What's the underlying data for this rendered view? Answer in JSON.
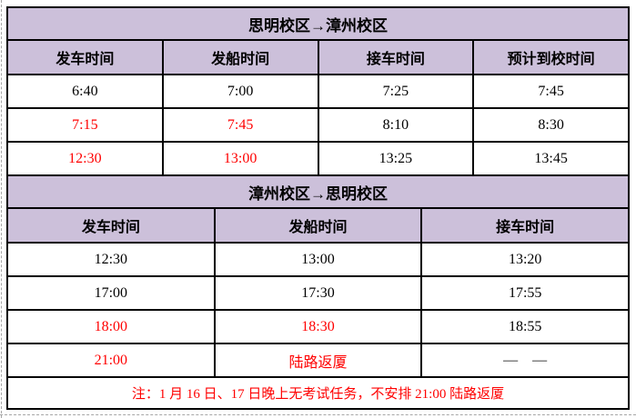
{
  "colors": {
    "page_bg": "#FFFFFF",
    "header_bg": "#CCC0DA",
    "red": "#FF0000",
    "border": "#000000",
    "dash": "#A6A6A6"
  },
  "table1": {
    "title": "思明校区→漳州校区",
    "columns": [
      "发车时间",
      "发船时间",
      "接车时间",
      "预计到校时间"
    ],
    "rows": [
      [
        "6:40",
        "7:00",
        "7:25",
        "7:45"
      ],
      [
        {
          "t": "7:15",
          "red": true
        },
        {
          "t": "7:45",
          "red": true
        },
        "8:10",
        "8:30"
      ],
      [
        {
          "t": "12:30",
          "red": true
        },
        {
          "t": "13:00",
          "red": true
        },
        "13:25",
        "13:45"
      ]
    ]
  },
  "table2": {
    "title": "漳州校区→思明校区",
    "columns": [
      "发车时间",
      "发船时间",
      "接车时间"
    ],
    "rows": [
      [
        "12:30",
        "13:00",
        "13:20"
      ],
      [
        "17:00",
        "17:30",
        "17:55"
      ],
      [
        {
          "t": "18:00",
          "red": true
        },
        {
          "t": "18:30",
          "red": true
        },
        "18:55"
      ],
      [
        {
          "t": "21:00",
          "red": true
        },
        {
          "t": "陆路返厦",
          "red": true
        },
        "— —"
      ]
    ]
  },
  "note": {
    "t": "注：1 月 16 日、17 日晚上无考试任务，不安排 21:00 陆路返厦",
    "red": true
  }
}
